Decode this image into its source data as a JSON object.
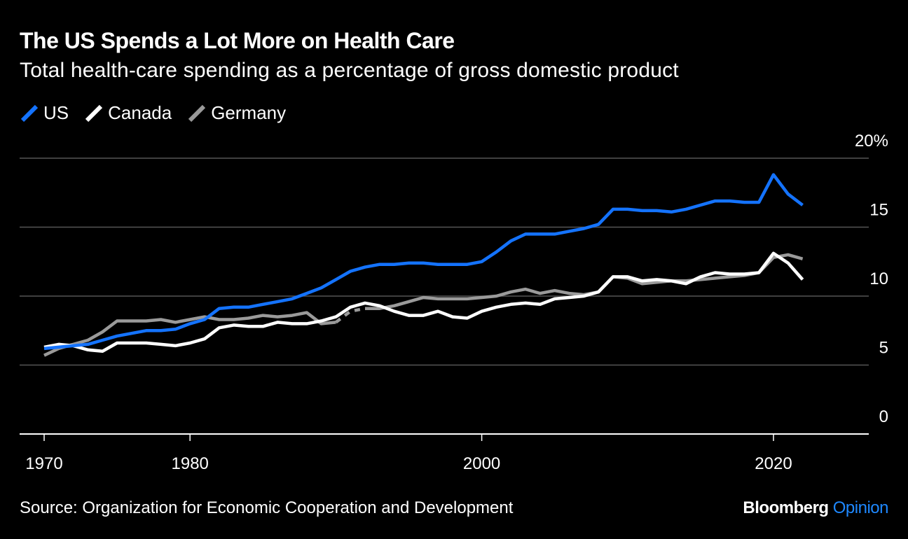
{
  "colors": {
    "background": "#000000",
    "gridline": "#555555",
    "us": "#1473ff",
    "canada": "#ffffff",
    "germany": "#9a9a9a",
    "brand_accent": "#1e88ff"
  },
  "source": "Source: Organization for Economic Cooperation and Development",
  "brand": {
    "main": "Bloomberg",
    "accent": "Opinion"
  },
  "chart_data": {
    "type": "line",
    "title": "The US Spends a Lot More on Health Care",
    "subtitle": "Total health-care spending as a percentage of gross domestic product",
    "xlabel": "",
    "ylabel": "",
    "xlim": [
      1969.5,
      2026
    ],
    "ylim": [
      0,
      20
    ],
    "grid": true,
    "legend_position": "top-left",
    "x_ticks": [
      1970,
      1980,
      2000,
      2020
    ],
    "x_tick_labels": [
      "1970",
      "1980",
      "2000",
      "2020"
    ],
    "y_ticks": [
      0,
      5,
      10,
      15,
      20
    ],
    "y_tick_labels": [
      "0",
      "5",
      "10",
      "15",
      "20%"
    ],
    "series": [
      {
        "name": "US",
        "color": "#1473ff",
        "x": [
          1970,
          1971,
          1972,
          1973,
          1974,
          1975,
          1976,
          1977,
          1978,
          1979,
          1980,
          1981,
          1982,
          1983,
          1984,
          1985,
          1986,
          1987,
          1988,
          1989,
          1990,
          1991,
          1992,
          1993,
          1994,
          1995,
          1996,
          1997,
          1998,
          1999,
          2000,
          2001,
          2002,
          2003,
          2004,
          2005,
          2006,
          2007,
          2008,
          2009,
          2010,
          2011,
          2012,
          2013,
          2014,
          2015,
          2016,
          2017,
          2018,
          2019,
          2020,
          2021,
          2022
        ],
        "y": [
          6.2,
          6.3,
          6.4,
          6.5,
          6.8,
          7.1,
          7.3,
          7.5,
          7.5,
          7.6,
          8.0,
          8.3,
          9.1,
          9.2,
          9.2,
          9.4,
          9.6,
          9.8,
          10.2,
          10.6,
          11.2,
          11.8,
          12.1,
          12.3,
          12.3,
          12.4,
          12.4,
          12.3,
          12.3,
          12.3,
          12.5,
          13.2,
          14.0,
          14.5,
          14.5,
          14.5,
          14.7,
          14.9,
          15.2,
          16.3,
          16.3,
          16.2,
          16.2,
          16.1,
          16.3,
          16.6,
          16.9,
          16.9,
          16.8,
          16.8,
          18.8,
          17.4,
          16.6
        ]
      },
      {
        "name": "Canada",
        "color": "#ffffff",
        "x": [
          1970,
          1971,
          1972,
          1973,
          1974,
          1975,
          1976,
          1977,
          1978,
          1979,
          1980,
          1981,
          1982,
          1983,
          1984,
          1985,
          1986,
          1987,
          1988,
          1989,
          1990,
          1991,
          1992,
          1993,
          1994,
          1995,
          1996,
          1997,
          1998,
          1999,
          2000,
          2001,
          2002,
          2003,
          2004,
          2005,
          2006,
          2007,
          2008,
          2009,
          2010,
          2011,
          2012,
          2013,
          2014,
          2015,
          2016,
          2017,
          2018,
          2019,
          2020,
          2021,
          2022
        ],
        "y": [
          6.3,
          6.5,
          6.4,
          6.1,
          6.0,
          6.6,
          6.6,
          6.6,
          6.5,
          6.4,
          6.6,
          6.9,
          7.7,
          7.9,
          7.8,
          7.8,
          8.1,
          8.0,
          8.0,
          8.2,
          8.5,
          9.2,
          9.5,
          9.3,
          8.9,
          8.6,
          8.6,
          8.9,
          8.5,
          8.4,
          8.9,
          9.2,
          9.4,
          9.5,
          9.4,
          9.8,
          9.9,
          10.0,
          10.3,
          11.4,
          11.4,
          11.1,
          11.2,
          11.1,
          10.9,
          11.4,
          11.7,
          11.6,
          11.6,
          11.7,
          13.1,
          12.4,
          11.2
        ]
      },
      {
        "name": "Germany",
        "color": "#9a9a9a",
        "x": [
          1970,
          1971,
          1972,
          1973,
          1974,
          1975,
          1976,
          1977,
          1978,
          1979,
          1980,
          1981,
          1982,
          1983,
          1984,
          1985,
          1986,
          1987,
          1988,
          1989,
          1990,
          1991,
          1992,
          1993,
          1994,
          1995,
          1996,
          1997,
          1998,
          1999,
          2000,
          2001,
          2002,
          2003,
          2004,
          2005,
          2006,
          2007,
          2008,
          2009,
          2010,
          2011,
          2012,
          2013,
          2014,
          2015,
          2016,
          2017,
          2018,
          2019,
          2020,
          2021,
          2022
        ],
        "y": [
          5.7,
          6.2,
          6.5,
          6.8,
          7.4,
          8.2,
          8.2,
          8.2,
          8.3,
          8.1,
          8.3,
          8.5,
          8.3,
          8.3,
          8.4,
          8.6,
          8.5,
          8.6,
          8.8,
          8.0,
          8.1,
          8.9,
          9.1,
          9.1,
          9.3,
          9.6,
          9.9,
          9.8,
          9.8,
          9.8,
          9.9,
          10.0,
          10.3,
          10.5,
          10.2,
          10.4,
          10.2,
          10.1,
          10.3,
          11.4,
          11.3,
          10.9,
          11.0,
          11.1,
          11.1,
          11.2,
          11.3,
          11.4,
          11.5,
          11.7,
          12.8,
          13.0,
          12.7
        ]
      }
    ]
  }
}
